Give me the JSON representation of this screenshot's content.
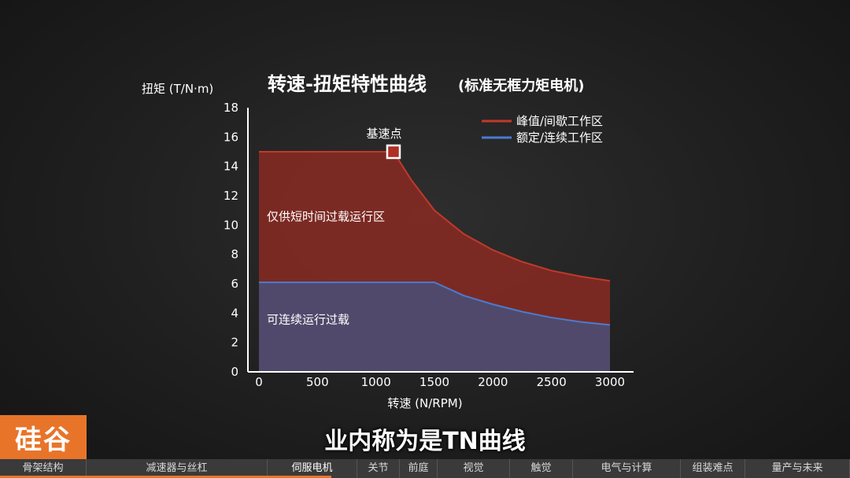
{
  "chart_data": {
    "type": "area",
    "title": "转速-扭矩特性曲线",
    "subtitle": "(标准无框力矩电机)",
    "ylabel": "扭矩 (T/N·m)",
    "xlabel": "转速 (N/RPM)",
    "xlim": [
      0,
      3000
    ],
    "ylim": [
      0,
      18
    ],
    "xticks": [
      0,
      500,
      1000,
      1500,
      2000,
      2500,
      3000
    ],
    "yticks": [
      0,
      2,
      4,
      6,
      8,
      10,
      12,
      14,
      16,
      18
    ],
    "legend_position": "top-right",
    "series": [
      {
        "name": "峰值/间歇工作区",
        "color": "#c0392b",
        "fill": "#8a2a22",
        "x": [
          0,
          1000,
          1150,
          1300,
          1500,
          1750,
          2000,
          2250,
          2500,
          2750,
          3000
        ],
        "values": [
          15,
          15,
          15,
          13.1,
          11.0,
          9.4,
          8.3,
          7.5,
          6.9,
          6.5,
          6.2
        ]
      },
      {
        "name": "额定/连续工作区",
        "color": "#4a7bd0",
        "fill": "#4a4f78",
        "x": [
          0,
          1000,
          1500,
          1750,
          2000,
          2250,
          2500,
          2750,
          3000
        ],
        "values": [
          6.1,
          6.1,
          6.1,
          5.2,
          4.6,
          4.1,
          3.7,
          3.4,
          3.2
        ]
      }
    ],
    "annotations": [
      {
        "text": "基速点",
        "x": 1150,
        "y": 15,
        "type": "marker"
      },
      {
        "text": "仅供短时间过载运行区",
        "x": 60,
        "y": 10.3
      },
      {
        "text": "可连续运行过载",
        "x": 60,
        "y": 3.3
      }
    ]
  },
  "logo_text": "硅谷",
  "caption": "业内称为是TN曲线",
  "nav": {
    "items": [
      "骨架结构",
      "减速器与丝杠",
      "伺服电机",
      "关节",
      "前庭",
      "视觉",
      "触觉",
      "电气与计算",
      "组装难点",
      "量产与未来"
    ],
    "active_index": 2,
    "progress": 0.39
  }
}
